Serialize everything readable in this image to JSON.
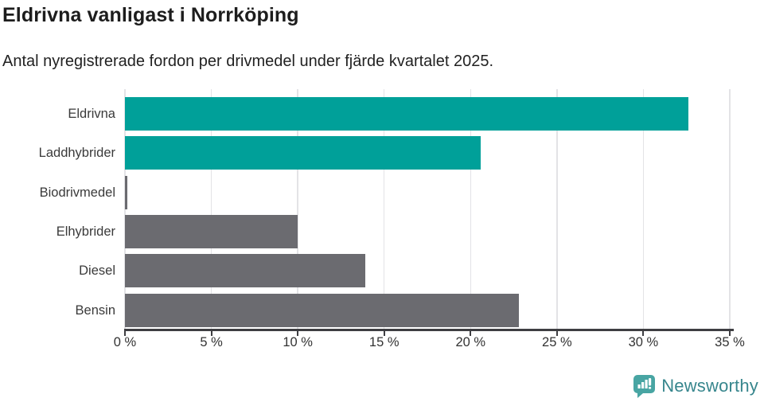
{
  "header": {
    "title": "Eldrivna vanligast i Norrköping",
    "subtitle": "Antal nyregistrerade fordon per drivmedel under fjärde kvartalet 2025."
  },
  "chart_data": {
    "type": "bar",
    "orientation": "horizontal",
    "title": "Eldrivna vanligast i Norrköping",
    "subtitle": "Antal nyregistrerade fordon per drivmedel under fjärde kvartalet 2025.",
    "categories": [
      "Eldrivna",
      "Laddhybrider",
      "Biodrivmedel",
      "Elhybrider",
      "Diesel",
      "Bensin"
    ],
    "values": [
      32.6,
      20.6,
      0.15,
      10.0,
      13.9,
      22.8
    ],
    "unit": "%",
    "bar_colors": [
      "#00a099",
      "#00a099",
      "#6b6b70",
      "#6b6b70",
      "#6b6b70",
      "#6b6b70"
    ],
    "xlabel": "",
    "ylabel": "",
    "xlim": [
      0,
      35.2
    ],
    "ticks": [
      0,
      5,
      10,
      15,
      20,
      25,
      30,
      35
    ],
    "tick_labels": [
      "0 %",
      "5 %",
      "10 %",
      "15 %",
      "20 %",
      "25 %",
      "30 %",
      "35 %"
    ],
    "grid": true,
    "legend": "none"
  },
  "footer": {
    "brand": "Newsworthy",
    "brand_color": "#37868d",
    "icon_color": "#48a5a3"
  },
  "colors": {
    "accent_teal": "#00a099",
    "neutral_gray": "#6b6b70",
    "axis": "#3e3e42",
    "gridline": "#e3e3e6",
    "text": "#333333"
  }
}
